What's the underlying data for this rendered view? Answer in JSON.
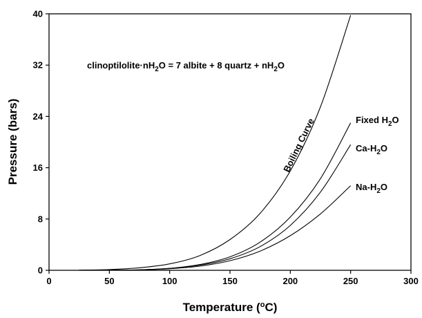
{
  "chart_data": {
    "type": "line",
    "title": "",
    "xlabel": "Temperature (°C)",
    "ylabel": "Pressure (bars)",
    "xlim": [
      0,
      300
    ],
    "ylim": [
      0,
      40
    ],
    "xticks": [
      0,
      50,
      100,
      150,
      200,
      250,
      300
    ],
    "yticks": [
      0,
      8,
      16,
      24,
      32,
      40
    ],
    "grid": false,
    "legend": "none",
    "equation": "clinoptilolite·nH2O = 7 albite + 8 quartz + nH2O",
    "series": [
      {
        "name": "Boiling Curve",
        "x": [
          25,
          50,
          75,
          100,
          125,
          150,
          175,
          200,
          225,
          250
        ],
        "y": [
          0.03,
          0.12,
          0.4,
          1.0,
          2.3,
          4.8,
          8.9,
          15.5,
          25.5,
          39.8
        ]
      },
      {
        "name": "Fixed H2O",
        "x": [
          25,
          50,
          75,
          100,
          125,
          150,
          175,
          200,
          225,
          250
        ],
        "y": [
          0.0,
          0.02,
          0.08,
          0.3,
          0.9,
          2.1,
          4.4,
          8.3,
          14.3,
          23.0
        ]
      },
      {
        "name": "Ca-H2O",
        "x": [
          25,
          50,
          75,
          100,
          125,
          150,
          175,
          200,
          225,
          250
        ],
        "y": [
          0.0,
          0.02,
          0.08,
          0.3,
          0.8,
          1.8,
          3.7,
          7.0,
          12.2,
          19.6
        ]
      },
      {
        "name": "Na-H2O",
        "x": [
          25,
          50,
          75,
          100,
          125,
          150,
          175,
          200,
          225,
          250
        ],
        "y": [
          0.0,
          0.02,
          0.07,
          0.25,
          0.65,
          1.5,
          3.0,
          5.4,
          8.8,
          13.2
        ]
      }
    ]
  }
}
